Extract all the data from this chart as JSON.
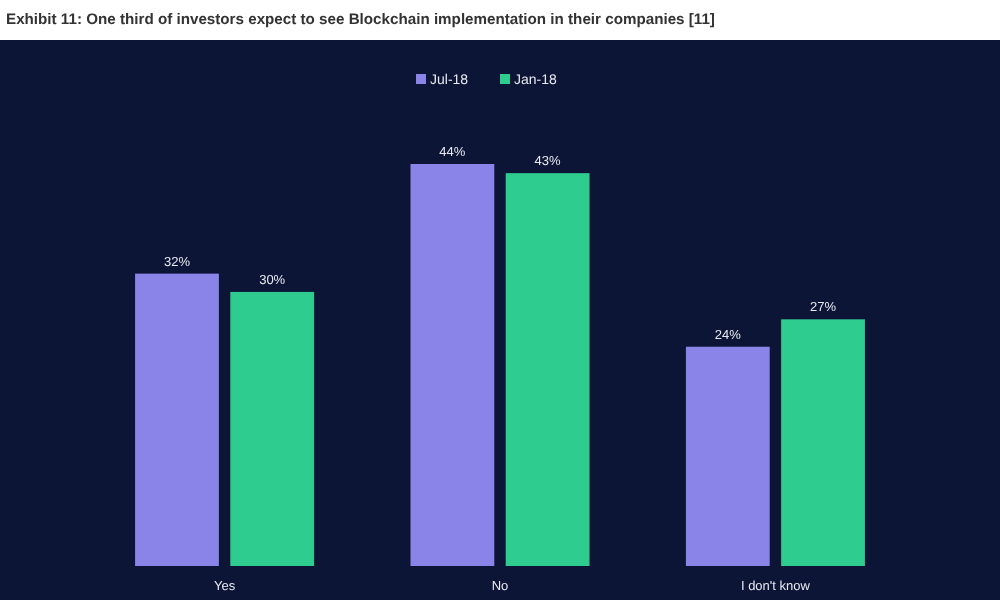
{
  "chart_data": {
    "type": "bar",
    "title": "Exhibit 11: One third of investors expect to see Blockchain implementation in their companies [11]",
    "categories": [
      "Yes",
      "No",
      "I don't know"
    ],
    "series": [
      {
        "name": "Jul-18",
        "color": "#8b84e8",
        "values": [
          32,
          44,
          24
        ],
        "value_labels": [
          "32%",
          "44%",
          "24%"
        ]
      },
      {
        "name": "Jan-18",
        "color": "#2ecc8f",
        "values": [
          30,
          43,
          27
        ],
        "value_labels": [
          "30%",
          "43%",
          "27%"
        ]
      }
    ],
    "legend": "top",
    "grid": false
  }
}
